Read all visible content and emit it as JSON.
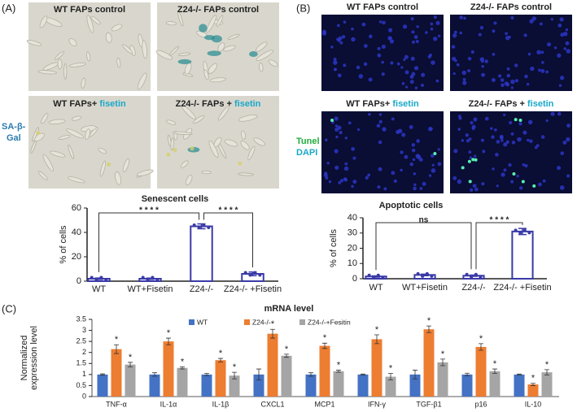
{
  "panels": {
    "a_label": "(A)",
    "b_label": "(B)",
    "c_label": "(C)",
    "stain_a": [
      "SA-β-",
      "Gal"
    ],
    "stain_b": [
      "Tunel",
      "DAPI"
    ],
    "images_a": [
      {
        "text": "WT FAPs control"
      },
      {
        "text": "Z24-/- FAPs control"
      },
      {
        "text": "WT FAPs+",
        "highlight": "fisetin"
      },
      {
        "text": "Z24-/- FAPs +",
        "highlight": "fisetin"
      }
    ],
    "images_b": [
      {
        "text": "WT FAPs control"
      },
      {
        "text": "Z24-/- FAPs control"
      },
      {
        "text": "WT FAPs+",
        "highlight": "fisetin"
      },
      {
        "text": "Z24-/- FAPs +",
        "highlight": "fisetin"
      }
    ]
  },
  "chart_data": [
    {
      "type": "bar",
      "title": "Senescent cells",
      "y_label": "% of cells",
      "categories": [
        "WT",
        "WT+Fisetin",
        "Z24-/-",
        "Z24-/- +Fisetin"
      ],
      "values": [
        2,
        2,
        45,
        6
      ],
      "errors": [
        0.6,
        0.5,
        2,
        1.5
      ],
      "color": "#3a3aa8",
      "bar_fill": "#ffffff",
      "ylim": [
        0,
        60
      ],
      "yticks": [
        0,
        20,
        40,
        60
      ],
      "brackets": [
        "* * * *",
        "* * * *"
      ]
    },
    {
      "type": "bar",
      "title": "Apoptotic cells",
      "y_label": "% of cells",
      "categories": [
        "WT",
        "WT+Fisetin",
        "Z24-/-",
        "Z24-/- +Fisetin"
      ],
      "values": [
        1.5,
        2.5,
        2,
        31
      ],
      "errors": [
        0.4,
        0.5,
        0.4,
        2
      ],
      "color": "#3a3aa8",
      "bar_fill": "#ffffff",
      "ylim": [
        0,
        40
      ],
      "yticks": [
        0,
        10,
        20,
        30,
        40
      ],
      "brackets": [
        "ns",
        "* * * *"
      ]
    },
    {
      "type": "grouped_bar",
      "title": "mRNA level",
      "y_label": [
        "Normalized",
        "expression level"
      ],
      "categories": [
        "TNF-α",
        "IL-1α",
        "IL-1β",
        "CXCL1",
        "MCP1",
        "IFN-γ",
        "TGF-β1",
        "p16",
        "IL-10"
      ],
      "series": [
        {
          "name": "WT",
          "color": "#4472c4",
          "values": [
            1,
            1,
            1,
            1,
            1,
            1,
            1,
            1,
            1
          ],
          "errors": [
            0.03,
            0.08,
            0.05,
            0.25,
            0.08,
            0.02,
            0.2,
            0.06,
            0.02
          ]
        },
        {
          "name": "Z24-/-",
          "color": "#ed7d31",
          "values": [
            2.15,
            2.5,
            1.65,
            2.85,
            2.3,
            2.6,
            3.05,
            2.25,
            0.55
          ],
          "errors": [
            0.2,
            0.15,
            0.08,
            0.2,
            0.12,
            0.2,
            0.15,
            0.15,
            0.05
          ]
        },
        {
          "name": "Z24-/-+Fesitin",
          "color": "#a5a5a5",
          "values": [
            1.45,
            1.3,
            0.95,
            1.85,
            1.15,
            0.9,
            1.55,
            1.15,
            1.1
          ],
          "errors": [
            0.1,
            0.05,
            0.15,
            0.07,
            0.05,
            0.15,
            0.15,
            0.1,
            0.12
          ]
        }
      ],
      "significance": "*",
      "ylim": [
        0,
        3.5
      ],
      "yticks": [
        0,
        0.5,
        1,
        {
          "value": 1.5,
          "label": "1.5"
        },
        2,
        {
          "value": 2.5,
          "label": "2.5"
        },
        3,
        {
          "value": 3.5,
          "label": "3.5"
        }
      ],
      "legend": "top"
    }
  ]
}
